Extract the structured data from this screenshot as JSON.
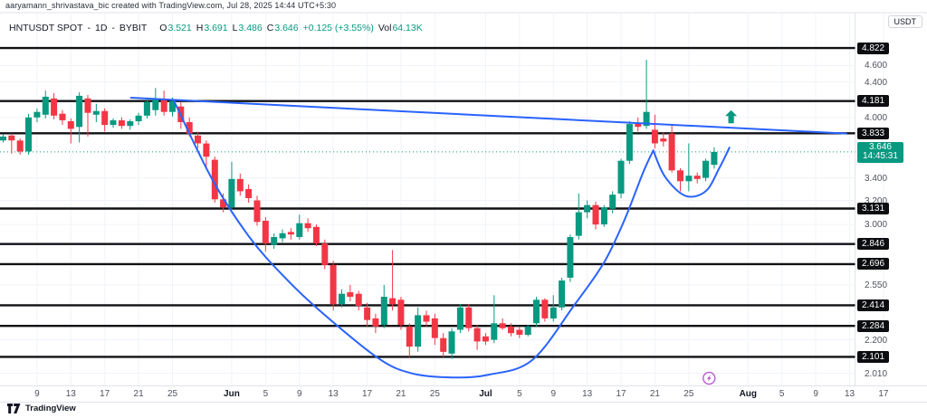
{
  "attribution": "aaryamann_shrivastava_bic created with TradingView.com, Jul 28, 2025 14:44 UTC+5:30",
  "legend": {
    "symbol": "HNTUSDT SPOT",
    "sep": "-",
    "interval": "1D",
    "exchange": "BYBIT",
    "o_label": "O",
    "o_value": "3.521",
    "h_label": "H",
    "h_value": "3.691",
    "l_label": "L",
    "l_value": "3.486",
    "c_label": "C",
    "c_value": "3.646",
    "change": "+0.125 (+3.55%)",
    "vol_label": "Vol",
    "vol_value": "64.13K"
  },
  "axis": {
    "currency": "USDT"
  },
  "footer": {
    "brand": "TradingView"
  },
  "colors": {
    "up": "#089981",
    "down": "#f23645",
    "drawing_blue": "#2962ff",
    "level_black": "#101114",
    "grid": "#f0f3fa",
    "axis_text": "#50535e",
    "pill_bg": "#0c0d10",
    "pill_text": "#ffffff",
    "current_pill_bg": "#089981",
    "marker_purple": "#ba5bd1"
  },
  "chart_data": {
    "type": "candlestick",
    "title": "HNTUSDT SPOT daily candlestick chart on BYBIT with cup-and-handle drawing",
    "scale": "log",
    "grid": true,
    "y_axis": {
      "current_price": 3.646,
      "current_price_text": "3.646",
      "countdown": "14:45:31",
      "price_line_levels": [
        4.822,
        4.181,
        3.833,
        3.131,
        2.846,
        2.696,
        2.414,
        2.284,
        2.101
      ],
      "grid_levels": [
        4.6,
        4.4,
        4.0,
        3.4,
        3.2,
        3.0,
        2.55,
        2.2,
        2.01
      ]
    },
    "x_ticks": [
      {
        "label": "9",
        "i": 4
      },
      {
        "label": "13",
        "i": 8
      },
      {
        "label": "17",
        "i": 12
      },
      {
        "label": "21",
        "i": 16
      },
      {
        "label": "25",
        "i": 20
      },
      {
        "label": "Jun",
        "i": 27,
        "month": true
      },
      {
        "label": "5",
        "i": 31
      },
      {
        "label": "9",
        "i": 35
      },
      {
        "label": "13",
        "i": 39
      },
      {
        "label": "17",
        "i": 43
      },
      {
        "label": "21",
        "i": 47
      },
      {
        "label": "25",
        "i": 51
      },
      {
        "label": "Jul",
        "i": 57,
        "month": true
      },
      {
        "label": "5",
        "i": 61
      },
      {
        "label": "9",
        "i": 65
      },
      {
        "label": "13",
        "i": 69
      },
      {
        "label": "17",
        "i": 73
      },
      {
        "label": "21",
        "i": 77
      },
      {
        "label": "25",
        "i": 81
      },
      {
        "label": "Aug",
        "i": 88,
        "month": true
      },
      {
        "label": "5",
        "i": 92
      },
      {
        "label": "9",
        "i": 96
      },
      {
        "label": "13",
        "i": 100
      },
      {
        "label": "17",
        "i": 104
      }
    ],
    "candles": [
      {
        "d": "May 5",
        "o": 3.76,
        "h": 3.82,
        "l": 3.74,
        "c": 3.8
      },
      {
        "d": "May 6",
        "o": 3.81,
        "h": 3.83,
        "l": 3.63,
        "c": 3.76
      },
      {
        "d": "May 7",
        "o": 3.76,
        "h": 3.78,
        "l": 3.62,
        "c": 3.65
      },
      {
        "d": "May 8",
        "o": 3.65,
        "h": 4.04,
        "l": 3.62,
        "c": 4.0
      },
      {
        "d": "May 9",
        "o": 4.0,
        "h": 4.1,
        "l": 3.95,
        "c": 4.06
      },
      {
        "d": "May 10",
        "o": 4.03,
        "h": 4.3,
        "l": 3.99,
        "c": 4.23
      },
      {
        "d": "May 11",
        "o": 4.21,
        "h": 4.27,
        "l": 3.98,
        "c": 4.02
      },
      {
        "d": "May 12",
        "o": 4.04,
        "h": 4.08,
        "l": 3.92,
        "c": 3.97
      },
      {
        "d": "May 13",
        "o": 3.96,
        "h": 3.99,
        "l": 3.73,
        "c": 3.88
      },
      {
        "d": "May 14",
        "o": 3.9,
        "h": 4.28,
        "l": 3.74,
        "c": 4.24
      },
      {
        "d": "May 15",
        "o": 4.21,
        "h": 4.25,
        "l": 3.8,
        "c": 4.05
      },
      {
        "d": "May 16",
        "o": 4.03,
        "h": 4.15,
        "l": 3.95,
        "c": 4.07
      },
      {
        "d": "May 17",
        "o": 4.07,
        "h": 4.1,
        "l": 3.85,
        "c": 3.92
      },
      {
        "d": "May 18",
        "o": 3.92,
        "h": 3.99,
        "l": 3.89,
        "c": 3.97
      },
      {
        "d": "May 19",
        "o": 3.97,
        "h": 4.0,
        "l": 3.88,
        "c": 3.91
      },
      {
        "d": "May 20",
        "o": 3.91,
        "h": 3.98,
        "l": 3.87,
        "c": 3.96
      },
      {
        "d": "May 21",
        "o": 3.96,
        "h": 4.05,
        "l": 3.92,
        "c": 4.02
      },
      {
        "d": "May 22",
        "o": 4.02,
        "h": 4.2,
        "l": 3.99,
        "c": 4.17
      },
      {
        "d": "May 23",
        "o": 4.08,
        "h": 4.33,
        "l": 4.02,
        "c": 4.2
      },
      {
        "d": "May 24",
        "o": 4.2,
        "h": 4.3,
        "l": 4.02,
        "c": 4.06
      },
      {
        "d": "May 25",
        "o": 4.06,
        "h": 4.22,
        "l": 4.01,
        "c": 4.18
      },
      {
        "d": "May 26",
        "o": 4.12,
        "h": 4.17,
        "l": 3.88,
        "c": 3.95
      },
      {
        "d": "May 27",
        "o": 3.95,
        "h": 4.0,
        "l": 3.8,
        "c": 3.83
      },
      {
        "d": "May 28",
        "o": 3.81,
        "h": 3.85,
        "l": 3.68,
        "c": 3.73
      },
      {
        "d": "May 29",
        "o": 3.73,
        "h": 3.76,
        "l": 3.48,
        "c": 3.6
      },
      {
        "d": "May 30",
        "o": 3.57,
        "h": 3.6,
        "l": 3.18,
        "c": 3.21
      },
      {
        "d": "May 31",
        "o": 3.21,
        "h": 3.26,
        "l": 3.1,
        "c": 3.14
      },
      {
        "d": "Jun 1",
        "o": 3.14,
        "h": 3.55,
        "l": 3.12,
        "c": 3.39
      },
      {
        "d": "Jun 2",
        "o": 3.39,
        "h": 3.44,
        "l": 3.24,
        "c": 3.28
      },
      {
        "d": "Jun 3",
        "o": 3.3,
        "h": 3.34,
        "l": 3.18,
        "c": 3.22
      },
      {
        "d": "Jun 4",
        "o": 3.2,
        "h": 3.24,
        "l": 2.99,
        "c": 3.02
      },
      {
        "d": "Jun 5",
        "o": 3.03,
        "h": 3.06,
        "l": 2.79,
        "c": 2.85
      },
      {
        "d": "Jun 6",
        "o": 2.84,
        "h": 2.93,
        "l": 2.81,
        "c": 2.9
      },
      {
        "d": "Jun 7",
        "o": 2.89,
        "h": 2.96,
        "l": 2.86,
        "c": 2.93
      },
      {
        "d": "Jun 8",
        "o": 2.94,
        "h": 2.97,
        "l": 2.88,
        "c": 2.92
      },
      {
        "d": "Jun 9",
        "o": 2.9,
        "h": 3.08,
        "l": 2.88,
        "c": 3.01
      },
      {
        "d": "Jun 10",
        "o": 3.01,
        "h": 3.05,
        "l": 2.94,
        "c": 2.97
      },
      {
        "d": "Jun 11",
        "o": 2.98,
        "h": 3.0,
        "l": 2.83,
        "c": 2.85
      },
      {
        "d": "Jun 12",
        "o": 2.85,
        "h": 2.88,
        "l": 2.66,
        "c": 2.69
      },
      {
        "d": "Jun 13",
        "o": 2.69,
        "h": 2.72,
        "l": 2.38,
        "c": 2.42
      },
      {
        "d": "Jun 14",
        "o": 2.42,
        "h": 2.52,
        "l": 2.4,
        "c": 2.49
      },
      {
        "d": "Jun 15",
        "o": 2.5,
        "h": 2.55,
        "l": 2.44,
        "c": 2.47
      },
      {
        "d": "Jun 16",
        "o": 2.49,
        "h": 2.51,
        "l": 2.38,
        "c": 2.41
      },
      {
        "d": "Jun 17",
        "o": 2.4,
        "h": 2.43,
        "l": 2.28,
        "c": 2.32
      },
      {
        "d": "Jun 18",
        "o": 2.33,
        "h": 2.36,
        "l": 2.24,
        "c": 2.28
      },
      {
        "d": "Jun 19",
        "o": 2.29,
        "h": 2.55,
        "l": 2.27,
        "c": 2.47
      },
      {
        "d": "Jun 20",
        "o": 2.46,
        "h": 2.8,
        "l": 2.38,
        "c": 2.42
      },
      {
        "d": "Jun 21",
        "o": 2.45,
        "h": 2.47,
        "l": 2.26,
        "c": 2.29
      },
      {
        "d": "Jun 22",
        "o": 2.28,
        "h": 2.3,
        "l": 2.1,
        "c": 2.16
      },
      {
        "d": "Jun 23",
        "o": 2.16,
        "h": 2.4,
        "l": 2.13,
        "c": 2.35
      },
      {
        "d": "Jun 24",
        "o": 2.35,
        "h": 2.38,
        "l": 2.28,
        "c": 2.31
      },
      {
        "d": "Jun 25",
        "o": 2.33,
        "h": 2.36,
        "l": 2.17,
        "c": 2.21
      },
      {
        "d": "Jun 26",
        "o": 2.21,
        "h": 2.24,
        "l": 2.1,
        "c": 2.13
      },
      {
        "d": "Jun 27",
        "o": 2.12,
        "h": 2.27,
        "l": 2.09,
        "c": 2.25
      },
      {
        "d": "Jun 28",
        "o": 2.26,
        "h": 2.42,
        "l": 2.24,
        "c": 2.4
      },
      {
        "d": "Jun 29",
        "o": 2.4,
        "h": 2.42,
        "l": 2.25,
        "c": 2.27
      },
      {
        "d": "Jun 30",
        "o": 2.27,
        "h": 2.29,
        "l": 2.14,
        "c": 2.19
      },
      {
        "d": "Jul 1",
        "o": 2.22,
        "h": 2.24,
        "l": 2.17,
        "c": 2.19
      },
      {
        "d": "Jul 2",
        "o": 2.2,
        "h": 2.48,
        "l": 2.18,
        "c": 2.3
      },
      {
        "d": "Jul 3",
        "o": 2.3,
        "h": 2.33,
        "l": 2.26,
        "c": 2.27
      },
      {
        "d": "Jul 4",
        "o": 2.28,
        "h": 2.3,
        "l": 2.22,
        "c": 2.24
      },
      {
        "d": "Jul 5",
        "o": 2.26,
        "h": 2.28,
        "l": 2.21,
        "c": 2.23
      },
      {
        "d": "Jul 6",
        "o": 2.23,
        "h": 2.29,
        "l": 2.22,
        "c": 2.28
      },
      {
        "d": "Jul 7",
        "o": 2.3,
        "h": 2.47,
        "l": 2.28,
        "c": 2.45
      },
      {
        "d": "Jul 8",
        "o": 2.45,
        "h": 2.46,
        "l": 2.31,
        "c": 2.33
      },
      {
        "d": "Jul 9",
        "o": 2.33,
        "h": 2.48,
        "l": 2.31,
        "c": 2.4
      },
      {
        "d": "Jul 10",
        "o": 2.4,
        "h": 2.6,
        "l": 2.38,
        "c": 2.58
      },
      {
        "d": "Jul 11",
        "o": 2.6,
        "h": 2.92,
        "l": 2.57,
        "c": 2.9
      },
      {
        "d": "Jul 12",
        "o": 2.91,
        "h": 3.26,
        "l": 2.88,
        "c": 3.1
      },
      {
        "d": "Jul 13",
        "o": 3.1,
        "h": 3.2,
        "l": 3.05,
        "c": 3.16
      },
      {
        "d": "Jul 14",
        "o": 3.16,
        "h": 3.19,
        "l": 2.96,
        "c": 3.0
      },
      {
        "d": "Jul 15",
        "o": 3.0,
        "h": 3.16,
        "l": 2.98,
        "c": 3.14
      },
      {
        "d": "Jul 16",
        "o": 3.13,
        "h": 3.28,
        "l": 3.09,
        "c": 3.25
      },
      {
        "d": "Jul 17",
        "o": 3.26,
        "h": 3.58,
        "l": 3.22,
        "c": 3.56
      },
      {
        "d": "Jul 18",
        "o": 3.56,
        "h": 3.96,
        "l": 3.53,
        "c": 3.93
      },
      {
        "d": "Jul 19",
        "o": 3.94,
        "h": 4.0,
        "l": 3.85,
        "c": 3.9
      },
      {
        "d": "Jul 20",
        "o": 3.91,
        "h": 4.67,
        "l": 3.88,
        "c": 4.06
      },
      {
        "d": "Jul 21",
        "o": 3.87,
        "h": 4.03,
        "l": 3.68,
        "c": 3.73
      },
      {
        "d": "Jul 22",
        "o": 3.78,
        "h": 3.84,
        "l": 3.7,
        "c": 3.75
      },
      {
        "d": "Jul 23",
        "o": 3.83,
        "h": 3.93,
        "l": 3.45,
        "c": 3.47
      },
      {
        "d": "Jul 24",
        "o": 3.47,
        "h": 3.49,
        "l": 3.28,
        "c": 3.37
      },
      {
        "d": "Jul 25",
        "o": 3.37,
        "h": 3.73,
        "l": 3.28,
        "c": 3.42
      },
      {
        "d": "Jul 26",
        "o": 3.42,
        "h": 3.45,
        "l": 3.35,
        "c": 3.39
      },
      {
        "d": "Jul 27",
        "o": 3.4,
        "h": 3.58,
        "l": 3.37,
        "c": 3.56
      },
      {
        "d": "Jul 28",
        "o": 3.521,
        "h": 3.691,
        "l": 3.486,
        "c": 3.646
      }
    ],
    "drawings": {
      "trendline": {
        "from": {
          "i": 15.1,
          "p": 4.218
        },
        "to": {
          "i": 99.6,
          "p": 3.831
        }
      },
      "cup": [
        {
          "i": 20.2,
          "p": 4.177
        },
        {
          "i": 24.8,
          "p": 3.372
        },
        {
          "i": 29.2,
          "p": 2.89
        },
        {
          "i": 33.3,
          "p": 2.6
        },
        {
          "i": 37.6,
          "p": 2.37
        },
        {
          "i": 44.3,
          "p": 2.094
        },
        {
          "i": 48.3,
          "p": 2.01
        },
        {
          "i": 53.1,
          "p": 1.988
        },
        {
          "i": 57.4,
          "p": 2.003
        },
        {
          "i": 62.5,
          "p": 2.083
        },
        {
          "i": 67.5,
          "p": 2.417
        },
        {
          "i": 71.0,
          "p": 2.71
        },
        {
          "i": 73.4,
          "p": 3.036
        },
        {
          "i": 75.6,
          "p": 3.45
        },
        {
          "i": 76.8,
          "p": 3.66
        }
      ],
      "handle": [
        {
          "i": 76.8,
          "p": 3.66
        },
        {
          "i": 78.2,
          "p": 3.41
        },
        {
          "i": 80.6,
          "p": 3.24
        },
        {
          "i": 83.0,
          "p": 3.28
        },
        {
          "i": 84.6,
          "p": 3.49
        },
        {
          "i": 85.8,
          "p": 3.688
        }
      ],
      "up_arrow": {
        "i": 86.0,
        "p": 4.08
      },
      "event_marker": {
        "i": 83.4,
        "p": 1.984
      }
    }
  }
}
